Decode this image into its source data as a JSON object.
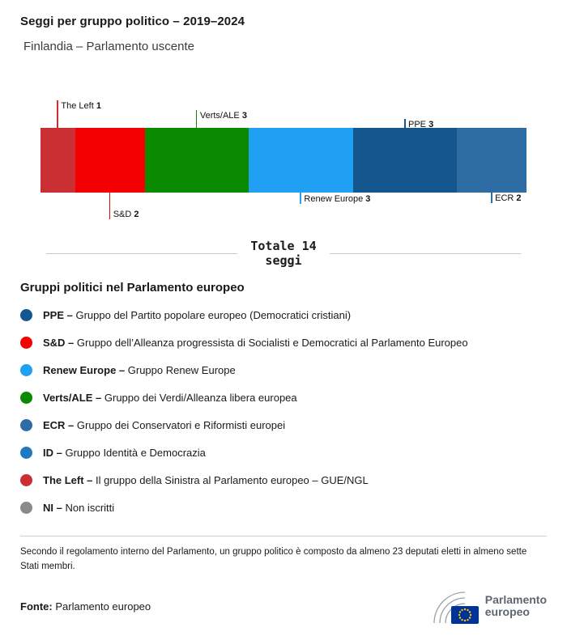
{
  "header": {
    "title": "Seggi per gruppo politico – 2019–2024",
    "subtitle": "Finlandia – Parlamento uscente"
  },
  "chart_data": {
    "type": "bar",
    "stacked": true,
    "orientation": "horizontal",
    "title": "Seggi per gruppo politico – 2019–2024",
    "total": 14,
    "categories": [
      "The Left",
      "S&D",
      "Verts/ALE",
      "Renew Europe",
      "PPE",
      "ECR"
    ],
    "values": [
      1,
      2,
      3,
      3,
      3,
      2
    ],
    "segments": [
      {
        "name": "The Left",
        "seats": 1,
        "color": "#CC2F33",
        "callout": {
          "side": "top",
          "line": 34
        }
      },
      {
        "name": "S&D",
        "seats": 2,
        "color": "#F40000",
        "callout": {
          "side": "bottom",
          "line": 33
        }
      },
      {
        "name": "Verts/ALE",
        "seats": 3,
        "color": "#0A8A00",
        "callout": {
          "side": "top",
          "line": 22
        }
      },
      {
        "name": "Renew Europe",
        "seats": 3,
        "color": "#1FA0F2",
        "callout": {
          "side": "bottom",
          "line": 14
        }
      },
      {
        "name": "PPE",
        "seats": 3,
        "color": "#14578F",
        "callout": {
          "side": "top",
          "line": 11
        }
      },
      {
        "name": "ECR",
        "seats": 2,
        "color": "#2E6DA4",
        "callout": {
          "side": "bottom",
          "line": 13
        }
      }
    ]
  },
  "total": {
    "line1": "Totale 14",
    "line2": "seggi"
  },
  "legend": {
    "heading": "Gruppi politici nel Parlamento europeo",
    "items": [
      {
        "abbr": "PPE",
        "desc": "Gruppo del Partito popolare europeo (Democratici cristiani)",
        "color": "#14578F"
      },
      {
        "abbr": "S&D",
        "desc": "Gruppo dell’Alleanza progressista di Socialisti e Democratici al Parlamento Europeo",
        "color": "#F40000"
      },
      {
        "abbr": "Renew Europe",
        "desc": "Gruppo Renew Europe",
        "color": "#1FA0F2"
      },
      {
        "abbr": "Verts/ALE",
        "desc": "Gruppo dei Verdi/Alleanza libera europea",
        "color": "#0A8A00"
      },
      {
        "abbr": "ECR",
        "desc": "Gruppo dei Conservatori e Riformisti europei",
        "color": "#2E6DA4"
      },
      {
        "abbr": "ID",
        "desc": "Gruppo Identità e Democrazia",
        "color": "#2379BF"
      },
      {
        "abbr": "The Left",
        "desc": "Il gruppo della Sinistra al Parlamento europeo – GUE/NGL",
        "color": "#CC2F33"
      },
      {
        "abbr": "NI",
        "desc": "Non iscritti",
        "color": "#8A8A8A"
      }
    ]
  },
  "footnote": "Secondo il regolamento interno del Parlamento, un gruppo politico è composto da almeno 23 deputati eletti in almeno sette Stati membri.",
  "source": {
    "label": "Fonte:",
    "value": "Parlamento europeo"
  },
  "logo": {
    "line1": "Parlamento",
    "line2": "europeo",
    "flag_blue": "#003399",
    "star_yellow": "#FFCC00"
  }
}
